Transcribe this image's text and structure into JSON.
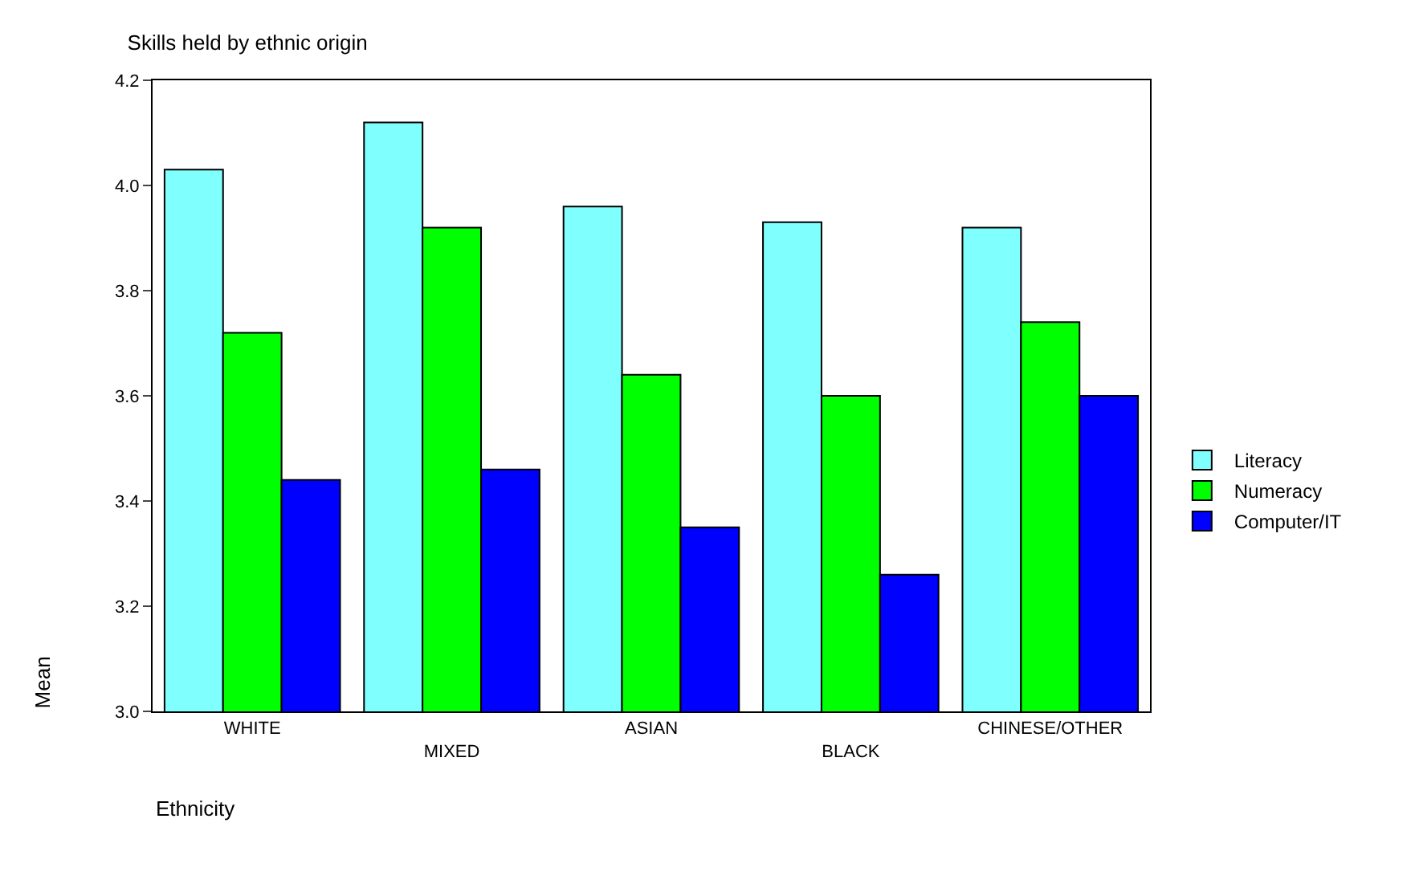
{
  "chart_data": {
    "type": "bar",
    "title": "Skills held by ethnic origin",
    "xlabel": "Ethnicity",
    "ylabel": "Mean",
    "categories": [
      "WHITE",
      "MIXED",
      "ASIAN",
      "BLACK",
      "CHINESE/OTHER"
    ],
    "series": [
      {
        "name": "Literacy",
        "color": "#80ffff",
        "values": [
          4.03,
          4.12,
          3.96,
          3.93,
          3.92
        ]
      },
      {
        "name": "Numeracy",
        "color": "#00ff00",
        "values": [
          3.72,
          3.92,
          3.64,
          3.6,
          3.74
        ]
      },
      {
        "name": "Computer/IT",
        "color": "#0000ff",
        "values": [
          3.44,
          3.46,
          3.35,
          3.26,
          3.6
        ]
      }
    ],
    "ylim": [
      3.0,
      4.2
    ],
    "yticks": [
      {
        "value": 3.0,
        "label": "3.0"
      },
      {
        "value": 3.2,
        "label": "3.2"
      },
      {
        "value": 3.4,
        "label": "3.4"
      },
      {
        "value": 3.6,
        "label": "3.6"
      },
      {
        "value": 3.8,
        "label": "3.8"
      },
      {
        "value": 4.0,
        "label": "4.0"
      },
      {
        "value": 4.2,
        "label": "4.2"
      }
    ],
    "legend": "right"
  }
}
